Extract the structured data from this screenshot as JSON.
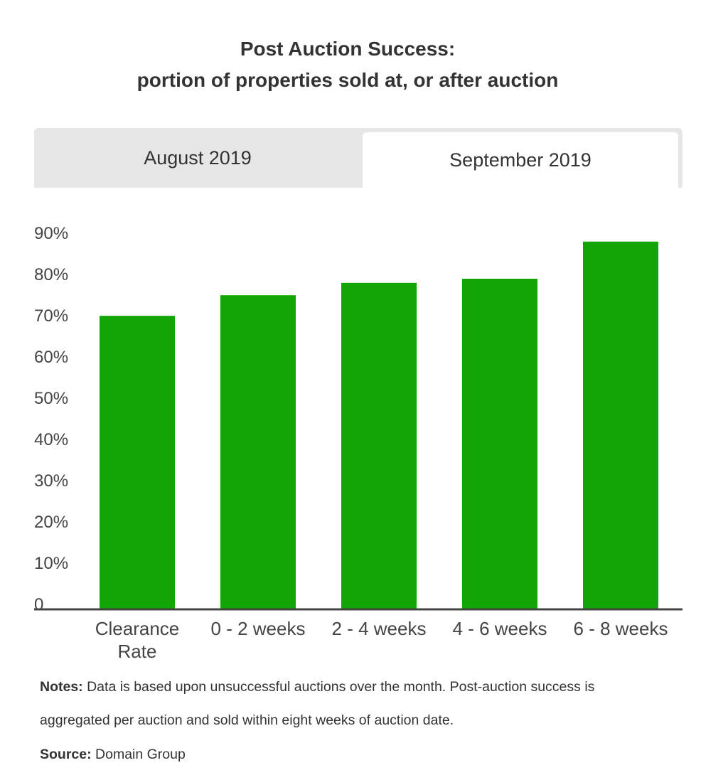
{
  "title": {
    "line1": "Post Auction Success:",
    "line2": "portion of properties sold at, or after auction"
  },
  "tabs": [
    {
      "label": "August 2019",
      "active": false
    },
    {
      "label": "September 2019",
      "active": true
    }
  ],
  "chart_data": {
    "type": "bar",
    "categories": [
      [
        "Clearance",
        "Rate"
      ],
      [
        "0 - 2 weeks"
      ],
      [
        "2 - 4 weeks"
      ],
      [
        "4 - 6 weeks"
      ],
      [
        "6 - 8 weeks"
      ]
    ],
    "values": [
      71,
      76,
      79,
      80,
      89
    ],
    "yticks": [
      "0",
      "10%",
      "20%",
      "30%",
      "40%",
      "50%",
      "60%",
      "70%",
      "80%",
      "90%"
    ],
    "ylim": [
      0,
      90
    ],
    "grid": false,
    "bar_color": "#11a505",
    "axis_color": "#444444"
  },
  "notes": {
    "label": "Notes:",
    "line1": "Data is based upon unsuccessful auctions over the month. Post-auction success is",
    "line2": "aggregated per auction and sold within eight weeks of auction date."
  },
  "source": {
    "label": "Source:",
    "text": "Domain Group"
  }
}
